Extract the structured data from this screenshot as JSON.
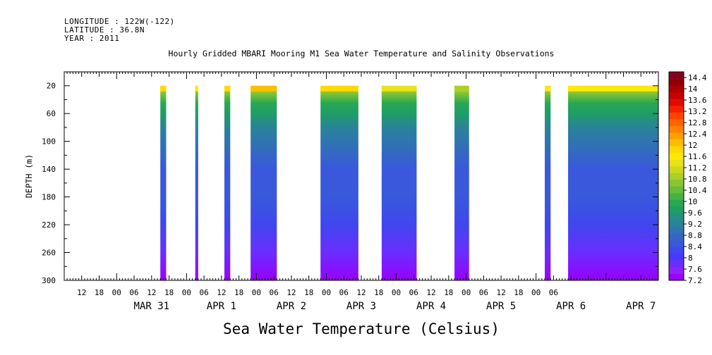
{
  "header": {
    "longitude": "LONGITUDE : 122W(-122)",
    "latitude": "LATITUDE : 36.8N",
    "year": "YEAR : 2011"
  },
  "chart_data": {
    "type": "heatmap",
    "title": "Hourly Gridded MBARI Mooring M1 Sea Water Temperature and Salinity Observations",
    "xlabel": "",
    "ylabel": "DEPTH (m)",
    "colorbar_label": "Sea Water Temperature (Celsius)",
    "y_axis": {
      "range": [
        0,
        300
      ],
      "reversed": true,
      "ticks": [
        20,
        60,
        100,
        140,
        180,
        220,
        260,
        300
      ]
    },
    "x_axis": {
      "start": "2011-03-30 06:00",
      "end": "2011-04-07 18:00",
      "hour_ticks": [
        "12",
        "18",
        "00",
        "06",
        "12",
        "18",
        "00",
        "06",
        "12",
        "18",
        "00",
        "06",
        "12",
        "18",
        "00",
        "06",
        "12",
        "18",
        "00",
        "06",
        "12",
        "18",
        "00",
        "06",
        "12",
        "18",
        "00",
        "06"
      ],
      "day_labels": [
        "MAR 31",
        "APR 1",
        "APR 2",
        "APR 3",
        "APR 4",
        "APR 5",
        "APR 6",
        "APR 7"
      ]
    },
    "data_depth_range": [
      20,
      300
    ],
    "data_blocks": [
      {
        "start": "2011-03-31 15:00",
        "end": "2011-03-31 17:00",
        "surface_temp": 11.8
      },
      {
        "start": "2011-04-01 03:00",
        "end": "2011-04-01 04:00",
        "surface_temp": 11.6
      },
      {
        "start": "2011-04-01 13:00",
        "end": "2011-04-01 15:00",
        "surface_temp": 11.8
      },
      {
        "start": "2011-04-01 22:00",
        "end": "2011-04-02 07:00",
        "surface_temp": 12.0
      },
      {
        "start": "2011-04-02 22:00",
        "end": "2011-04-03 11:00",
        "surface_temp": 11.8
      },
      {
        "start": "2011-04-03 19:00",
        "end": "2011-04-04 07:00",
        "surface_temp": 11.4
      },
      {
        "start": "2011-04-04 20:00",
        "end": "2011-04-05 01:00",
        "surface_temp": 11.0
      },
      {
        "start": "2011-04-06 03:00",
        "end": "2011-04-06 05:00",
        "surface_temp": 11.6
      },
      {
        "start": "2011-04-06 11:00",
        "end": "2011-04-07 18:00",
        "surface_temp": 11.6
      }
    ],
    "temperature_profile": {
      "depths": [
        20,
        30,
        45,
        60,
        80,
        100,
        140,
        180,
        220,
        260,
        300
      ],
      "temps": [
        11.6,
        10.6,
        10.0,
        9.6,
        9.2,
        8.9,
        8.6,
        8.4,
        8.2,
        7.9,
        7.4
      ]
    },
    "colorbar": {
      "range": [
        7.2,
        14.6
      ],
      "labels": [
        "14.4",
        "14",
        "13.6",
        "13.2",
        "12.8",
        "12.4",
        "12",
        "11.6",
        "11.2",
        "10.8",
        "10.4",
        "10",
        "9.6",
        "9.2",
        "8.8",
        "8.4",
        "8",
        "7.6",
        "7.2"
      ],
      "colors": [
        "#9900ff",
        "#8f22ff",
        "#6a2dff",
        "#4a38ff",
        "#3f47ee",
        "#3958dc",
        "#3566c6",
        "#2f75b0",
        "#298398",
        "#23917f",
        "#1e9e66",
        "#28a854",
        "#45b147",
        "#66bc3c",
        "#87c532",
        "#a9cf28",
        "#cbd91d",
        "#e8e218",
        "#fde80a",
        "#ffd900",
        "#ffbd00",
        "#ffa000",
        "#ff8200",
        "#ff6400",
        "#ff4400",
        "#f32100",
        "#e00b00",
        "#c80000",
        "#ad0000",
        "#900000",
        "#880020"
      ]
    },
    "grid": false,
    "legend": "colorbar-right"
  }
}
